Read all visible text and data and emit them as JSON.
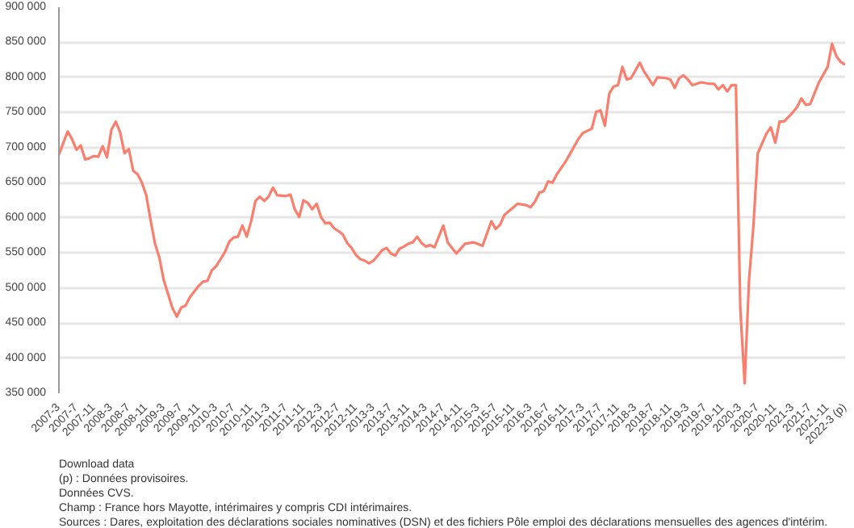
{
  "chart_data": {
    "type": "line",
    "line_style": "solid",
    "marker": "none",
    "grid": "y",
    "x": [
      "2007-03",
      "2007-05",
      "2007-06",
      "2007-07",
      "2007-08",
      "2007-09",
      "2007-10",
      "2007-11",
      "2007-12",
      "2008-01",
      "2008-02",
      "2008-03",
      "2008-04",
      "2008-05",
      "2008-06",
      "2008-07",
      "2008-08",
      "2008-09",
      "2008-10",
      "2008-11",
      "2008-12",
      "2009-01",
      "2009-02",
      "2009-03",
      "2009-04",
      "2009-05",
      "2009-06",
      "2009-07",
      "2009-08",
      "2009-09",
      "2009-10",
      "2009-11",
      "2009-12",
      "2010-01",
      "2010-02",
      "2010-03",
      "2010-04",
      "2010-05",
      "2010-06",
      "2010-07",
      "2010-08",
      "2010-09",
      "2010-10",
      "2010-11",
      "2010-12",
      "2011-01",
      "2011-02",
      "2011-03",
      "2011-04",
      "2011-05",
      "2011-07",
      "2011-08",
      "2011-09",
      "2011-10",
      "2011-11",
      "2011-12",
      "2012-01",
      "2012-02",
      "2012-03",
      "2012-04",
      "2012-05",
      "2012-06",
      "2012-07",
      "2012-08",
      "2012-09",
      "2012-10",
      "2012-11",
      "2012-12",
      "2013-01",
      "2013-02",
      "2013-03",
      "2013-04",
      "2013-05",
      "2013-06",
      "2013-07",
      "2013-08",
      "2013-09",
      "2013-10",
      "2013-11",
      "2013-12",
      "2014-01",
      "2014-02",
      "2014-03",
      "2014-04",
      "2014-05",
      "2014-07",
      "2014-08",
      "2014-10",
      "2014-12",
      "2015-02",
      "2015-04",
      "2015-06",
      "2015-07",
      "2015-08",
      "2015-09",
      "2015-12",
      "2016-02",
      "2016-03",
      "2016-04",
      "2016-05",
      "2016-06",
      "2016-07",
      "2016-08",
      "2016-09",
      "2016-11",
      "2016-12",
      "2017-02",
      "2017-03",
      "2017-05",
      "2017-06",
      "2017-07",
      "2017-08",
      "2017-09",
      "2017-10",
      "2017-11",
      "2017-12",
      "2018-01",
      "2018-02",
      "2018-04",
      "2018-05",
      "2018-07",
      "2018-08",
      "2018-10",
      "2018-11",
      "2018-12",
      "2019-01",
      "2019-02",
      "2019-03",
      "2019-04",
      "2019-06",
      "2019-08",
      "2019-09",
      "2019-10",
      "2019-11",
      "2019-12",
      "2020-01",
      "2020-02",
      "2020-03",
      "2020-04",
      "2020-05",
      "2020-06",
      "2020-07",
      "2020-09",
      "2020-10",
      "2020-11",
      "2020-12",
      "2021-01",
      "2021-03",
      "2021-04",
      "2021-05",
      "2021-06",
      "2021-07",
      "2021-09",
      "2021-11",
      "2021-12",
      "2022-01",
      "2022-02",
      "2022-03"
    ],
    "series": [
      {
        "color": "#fb7d6c",
        "values": [
          690000,
          723000,
          712000,
          697000,
          703000,
          683000,
          685000,
          688000,
          687000,
          702000,
          686000,
          725000,
          737000,
          722000,
          692000,
          698000,
          667000,
          662000,
          650000,
          632000,
          596000,
          563000,
          543000,
          511000,
          491000,
          471000,
          459000,
          472000,
          475000,
          487000,
          495000,
          503000,
          509000,
          510000,
          525000,
          531000,
          541000,
          551000,
          566000,
          572000,
          573000,
          589000,
          573000,
          595000,
          624000,
          630000,
          624000,
          630000,
          643000,
          632000,
          631000,
          633000,
          612000,
          601000,
          625000,
          621000,
          612000,
          620000,
          601000,
          592000,
          593000,
          585000,
          581000,
          576000,
          564000,
          557000,
          547000,
          541000,
          539000,
          535000,
          539000,
          546000,
          554000,
          557000,
          549000,
          546000,
          556000,
          559000,
          563000,
          565000,
          573000,
          564000,
          559000,
          561000,
          558000,
          589000,
          565000,
          549000,
          563000,
          565000,
          560000,
          595000,
          584000,
          590000,
          604000,
          620000,
          618000,
          615000,
          623000,
          636000,
          638000,
          652000,
          650000,
          662000,
          680000,
          691000,
          713000,
          721000,
          727000,
          751000,
          753000,
          731000,
          777000,
          787000,
          789000,
          815000,
          797000,
          799000,
          821000,
          808000,
          789000,
          800000,
          799000,
          797000,
          785000,
          799000,
          803000,
          797000,
          789000,
          793000,
          791000,
          791000,
          783000,
          789000,
          780000,
          789000,
          789000,
          470000,
          364000,
          511000,
          588000,
          692000,
          720000,
          729000,
          707000,
          737000,
          737000,
          750000,
          758000,
          770000,
          761000,
          762000,
          793000,
          815000,
          848000,
          830000,
          822000,
          818000
        ]
      }
    ],
    "xlim": [
      "2007-03",
      "2022-03"
    ],
    "xticks": [
      {
        "value": "2007-03",
        "label": "2007-3"
      },
      {
        "value": "2007-07",
        "label": "2007-7"
      },
      {
        "value": "2007-11",
        "label": "2007-11"
      },
      {
        "value": "2008-03",
        "label": "2008-3"
      },
      {
        "value": "2008-07",
        "label": "2008-7"
      },
      {
        "value": "2008-11",
        "label": "2008-11"
      },
      {
        "value": "2009-03",
        "label": "2009-3"
      },
      {
        "value": "2009-07",
        "label": "2009-7"
      },
      {
        "value": "2009-11",
        "label": "2009-11"
      },
      {
        "value": "2010-03",
        "label": "2010-3"
      },
      {
        "value": "2010-07",
        "label": "2010-7"
      },
      {
        "value": "2010-11",
        "label": "2010-11"
      },
      {
        "value": "2011-03",
        "label": "2011-3"
      },
      {
        "value": "2011-07",
        "label": "2011-7"
      },
      {
        "value": "2011-11",
        "label": "2011-11"
      },
      {
        "value": "2012-03",
        "label": "2012-3"
      },
      {
        "value": "2012-07",
        "label": "2012-7"
      },
      {
        "value": "2012-11",
        "label": "2012-11"
      },
      {
        "value": "2013-03",
        "label": "2013-3"
      },
      {
        "value": "2013-07",
        "label": "2013-7"
      },
      {
        "value": "2013-11",
        "label": "2013-11"
      },
      {
        "value": "2014-03",
        "label": "2014-3"
      },
      {
        "value": "2014-07",
        "label": "2014-7"
      },
      {
        "value": "2014-11",
        "label": "2014-11"
      },
      {
        "value": "2015-03",
        "label": "2015-3"
      },
      {
        "value": "2015-07",
        "label": "2015-7"
      },
      {
        "value": "2015-11",
        "label": "2015-11"
      },
      {
        "value": "2016-03",
        "label": "2016-3"
      },
      {
        "value": "2016-07",
        "label": "2016-7"
      },
      {
        "value": "2016-11",
        "label": "2016-11"
      },
      {
        "value": "2017-03",
        "label": "2017-3"
      },
      {
        "value": "2017-07",
        "label": "2017-7"
      },
      {
        "value": "2017-11",
        "label": "2017-11"
      },
      {
        "value": "2018-03",
        "label": "2018-3"
      },
      {
        "value": "2018-07",
        "label": "2018-7"
      },
      {
        "value": "2018-11",
        "label": "2018-11"
      },
      {
        "value": "2019-03",
        "label": "2019-3"
      },
      {
        "value": "2019-07",
        "label": "2019-7"
      },
      {
        "value": "2019-11",
        "label": "2019-11"
      },
      {
        "value": "2020-03",
        "label": "2020-3"
      },
      {
        "value": "2020-07",
        "label": "2020-7"
      },
      {
        "value": "2020-11",
        "label": "2020-11"
      },
      {
        "value": "2021-03",
        "label": "2021-3"
      },
      {
        "value": "2021-07",
        "label": "2021-7"
      },
      {
        "value": "2021-11",
        "label": "2021-11"
      },
      {
        "value": "2022-03",
        "label": "2022-3 (p)"
      }
    ],
    "ylim": [
      350000,
      900000
    ],
    "yticks": [
      {
        "value": 350000,
        "label": "350 000"
      },
      {
        "value": 400000,
        "label": "400 000"
      },
      {
        "value": 450000,
        "label": "450 000"
      },
      {
        "value": 500000,
        "label": "500 000"
      },
      {
        "value": 550000,
        "label": "550 000"
      },
      {
        "value": 600000,
        "label": "600 000"
      },
      {
        "value": 650000,
        "label": "650 000"
      },
      {
        "value": 700000,
        "label": "700 000"
      },
      {
        "value": 750000,
        "label": "750 000"
      },
      {
        "value": 800000,
        "label": "800 000"
      },
      {
        "value": 850000,
        "label": "850 000"
      },
      {
        "value": 900000,
        "label": "900 000"
      }
    ],
    "annotations": [
      "Download data",
      "(p) : Données provisoires.",
      "Données CVS.",
      "Champ : France hors Mayotte, intérimaires y compris CDI intérimaires.",
      "Sources : Dares, exploitation des déclarations sociales nominatives (DSN) et des fichiers Pôle emploi des déclarations mensuelles des agences d'intérim."
    ]
  }
}
